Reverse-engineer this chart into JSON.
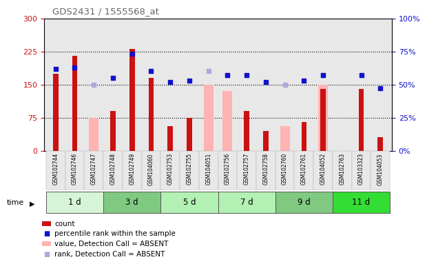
{
  "title": "GDS2431 / 1555568_at",
  "samples": [
    "GSM102744",
    "GSM102746",
    "GSM102747",
    "GSM102748",
    "GSM102749",
    "GSM104060",
    "GSM102753",
    "GSM102755",
    "GSM104051",
    "GSM102756",
    "GSM102757",
    "GSM102758",
    "GSM102760",
    "GSM102761",
    "GSM104052",
    "GSM102763",
    "GSM103323",
    "GSM104053"
  ],
  "count_values": [
    175,
    215,
    null,
    90,
    230,
    165,
    55,
    75,
    null,
    null,
    90,
    45,
    null,
    65,
    140,
    null,
    140,
    30
  ],
  "pink_bar_values": [
    null,
    null,
    75,
    null,
    null,
    null,
    null,
    null,
    150,
    135,
    null,
    null,
    55,
    null,
    150,
    null,
    null,
    null
  ],
  "blue_square_values": [
    62,
    63,
    null,
    55,
    73,
    60,
    52,
    53,
    null,
    57,
    57,
    52,
    null,
    53,
    57,
    null,
    57,
    47
  ],
  "lavender_square_values": [
    null,
    null,
    50,
    null,
    null,
    null,
    null,
    null,
    60,
    57,
    null,
    null,
    50,
    null,
    57,
    null,
    null,
    null
  ],
  "groups": [
    {
      "label": "1 d",
      "start": 0,
      "end": 3,
      "color": "#d6f5d6"
    },
    {
      "label": "3 d",
      "start": 3,
      "end": 6,
      "color": "#80c980"
    },
    {
      "label": "5 d",
      "start": 6,
      "end": 9,
      "color": "#b3f0b3"
    },
    {
      "label": "7 d",
      "start": 9,
      "end": 12,
      "color": "#b3f0b3"
    },
    {
      "label": "9 d",
      "start": 12,
      "end": 15,
      "color": "#80c980"
    },
    {
      "label": "11 d",
      "start": 15,
      "end": 18,
      "color": "#33dd33"
    }
  ],
  "count_color": "#cc1111",
  "pink_color": "#ffb3b3",
  "blue_color": "#1111cc",
  "lavender_color": "#aaaadd",
  "axes_bg": "#e8e8e8",
  "bar_width": 0.5,
  "yticks_left": [
    0,
    75,
    150,
    225,
    300
  ],
  "ytick_labels_right": [
    "0%",
    "25%",
    "50%",
    "75%",
    "100%"
  ]
}
